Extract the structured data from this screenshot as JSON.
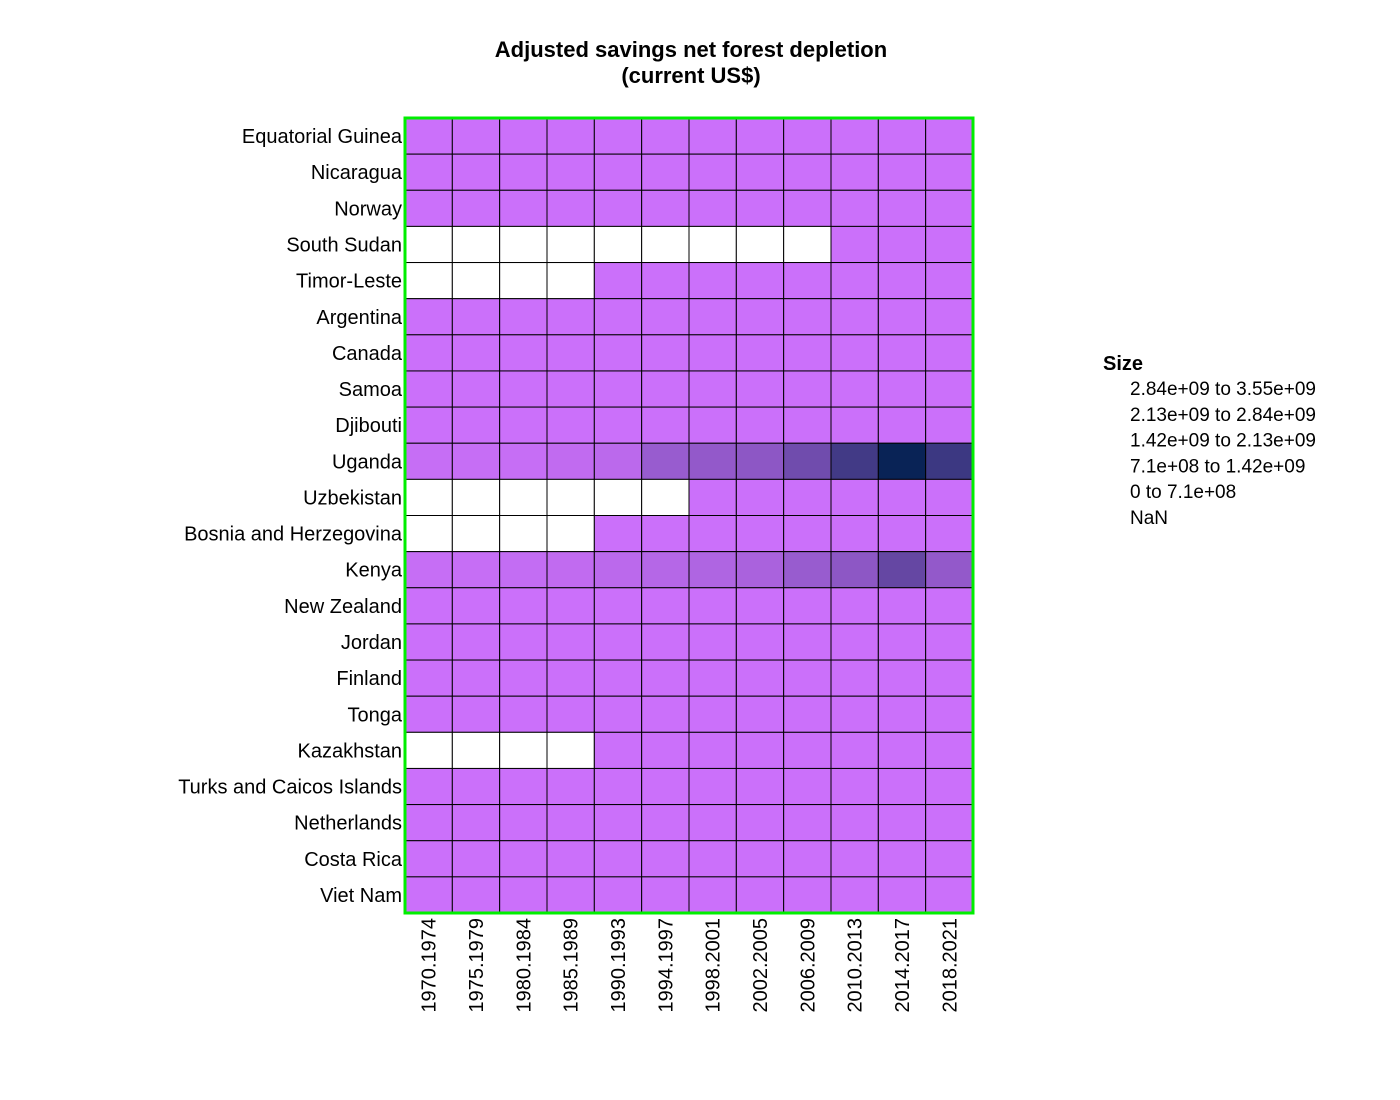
{
  "chart_data": {
    "type": "heatmap",
    "title": [
      "Adjusted savings net forest depletion",
      "(current US$)"
    ],
    "rows": [
      "Equatorial Guinea",
      "Nicaragua",
      "Norway",
      "South Sudan",
      "Timor-Leste",
      "Argentina",
      "Canada",
      "Samoa",
      "Djibouti",
      "Uganda",
      "Uzbekistan",
      "Bosnia and Herzegovina",
      "Kenya",
      "New Zealand",
      "Jordan",
      "Finland",
      "Tonga",
      "Kazakhstan",
      "Turks and Caicos Islands",
      "Netherlands",
      "Costa Rica",
      "Viet Nam"
    ],
    "columns": [
      "1970.1974",
      "1975.1979",
      "1980.1984",
      "1985.1989",
      "1990.1993",
      "1994.1997",
      "1998.2001",
      "2002.2005",
      "2006.2009",
      "2010.2013",
      "2014.2017",
      "2018.2021"
    ],
    "values": [
      [
        10000000.0,
        10000000.0,
        10000000.0,
        10000000.0,
        10000000.0,
        10000000.0,
        10000000.0,
        10000000.0,
        10000000.0,
        10000000.0,
        10000000.0,
        10000000.0
      ],
      [
        10000000.0,
        10000000.0,
        10000000.0,
        10000000.0,
        10000000.0,
        10000000.0,
        10000000.0,
        10000000.0,
        10000000.0,
        10000000.0,
        10000000.0,
        10000000.0
      ],
      [
        10000000.0,
        10000000.0,
        10000000.0,
        10000000.0,
        10000000.0,
        10000000.0,
        10000000.0,
        10000000.0,
        10000000.0,
        10000000.0,
        10000000.0,
        10000000.0
      ],
      [
        null,
        null,
        null,
        null,
        null,
        null,
        null,
        null,
        null,
        10000000.0,
        10000000.0,
        10000000.0
      ],
      [
        null,
        null,
        null,
        null,
        10000000.0,
        10000000.0,
        10000000.0,
        10000000.0,
        10000000.0,
        10000000.0,
        10000000.0,
        10000000.0
      ],
      [
        10000000.0,
        10000000.0,
        10000000.0,
        10000000.0,
        10000000.0,
        10000000.0,
        10000000.0,
        10000000.0,
        10000000.0,
        10000000.0,
        10000000.0,
        10000000.0
      ],
      [
        10000000.0,
        10000000.0,
        10000000.0,
        10000000.0,
        10000000.0,
        10000000.0,
        10000000.0,
        10000000.0,
        10000000.0,
        10000000.0,
        10000000.0,
        10000000.0
      ],
      [
        10000000.0,
        10000000.0,
        10000000.0,
        10000000.0,
        10000000.0,
        10000000.0,
        10000000.0,
        10000000.0,
        10000000.0,
        10000000.0,
        10000000.0,
        10000000.0
      ],
      [
        10000000.0,
        10000000.0,
        10000000.0,
        10000000.0,
        10000000.0,
        10000000.0,
        10000000.0,
        10000000.0,
        10000000.0,
        10000000.0,
        10000000.0,
        10000000.0
      ],
      [
        100000000.0,
        100000000.0,
        100000000.0,
        200000000.0,
        300000000.0,
        900000000.0,
        1000000000.0,
        1100000000.0,
        1600000000.0,
        2400000000.0,
        3400000000.0,
        2500000000.0
      ],
      [
        null,
        null,
        null,
        null,
        null,
        null,
        10000000.0,
        10000000.0,
        10000000.0,
        10000000.0,
        10000000.0,
        10000000.0
      ],
      [
        null,
        null,
        null,
        null,
        10000000.0,
        10000000.0,
        10000000.0,
        10000000.0,
        10000000.0,
        10000000.0,
        10000000.0,
        10000000.0
      ],
      [
        100000000.0,
        100000000.0,
        150000000.0,
        200000000.0,
        300000000.0,
        400000000.0,
        500000000.0,
        600000000.0,
        900000000.0,
        1100000000.0,
        1800000000.0,
        1000000000.0
      ],
      [
        10000000.0,
        10000000.0,
        10000000.0,
        10000000.0,
        10000000.0,
        10000000.0,
        10000000.0,
        10000000.0,
        10000000.0,
        10000000.0,
        10000000.0,
        10000000.0
      ],
      [
        10000000.0,
        10000000.0,
        10000000.0,
        10000000.0,
        10000000.0,
        10000000.0,
        10000000.0,
        10000000.0,
        10000000.0,
        10000000.0,
        10000000.0,
        10000000.0
      ],
      [
        10000000.0,
        10000000.0,
        10000000.0,
        10000000.0,
        10000000.0,
        10000000.0,
        10000000.0,
        10000000.0,
        10000000.0,
        10000000.0,
        10000000.0,
        10000000.0
      ],
      [
        10000000.0,
        10000000.0,
        10000000.0,
        10000000.0,
        10000000.0,
        10000000.0,
        10000000.0,
        10000000.0,
        10000000.0,
        10000000.0,
        10000000.0,
        10000000.0
      ],
      [
        null,
        null,
        null,
        null,
        10000000.0,
        10000000.0,
        10000000.0,
        10000000.0,
        10000000.0,
        10000000.0,
        10000000.0,
        10000000.0
      ],
      [
        10000000.0,
        10000000.0,
        10000000.0,
        10000000.0,
        10000000.0,
        10000000.0,
        10000000.0,
        10000000.0,
        10000000.0,
        10000000.0,
        10000000.0,
        10000000.0
      ],
      [
        10000000.0,
        10000000.0,
        10000000.0,
        10000000.0,
        10000000.0,
        10000000.0,
        10000000.0,
        10000000.0,
        10000000.0,
        10000000.0,
        10000000.0,
        10000000.0
      ],
      [
        10000000.0,
        10000000.0,
        10000000.0,
        10000000.0,
        10000000.0,
        10000000.0,
        10000000.0,
        10000000.0,
        10000000.0,
        10000000.0,
        10000000.0,
        10000000.0
      ],
      [
        10000000.0,
        10000000.0,
        10000000.0,
        10000000.0,
        10000000.0,
        10000000.0,
        10000000.0,
        10000000.0,
        10000000.0,
        10000000.0,
        10000000.0,
        10000000.0
      ]
    ],
    "scale": {
      "min": 0,
      "max": 3550000000.0,
      "low_color": "#cc70fa",
      "high_color": "#00204f",
      "nan_color": "#ffffff"
    },
    "legend": {
      "title": "Size",
      "placement": "right",
      "entries": [
        "2.84e+09  to  3.55e+09",
        "2.13e+09  to  2.84e+09",
        "1.42e+09  to  2.13e+09",
        "7.1e+08  to  1.42e+09",
        "0  to  7.1e+08",
        "NaN"
      ]
    },
    "frame_color": "#00ee00",
    "grid_color": "#000000"
  }
}
